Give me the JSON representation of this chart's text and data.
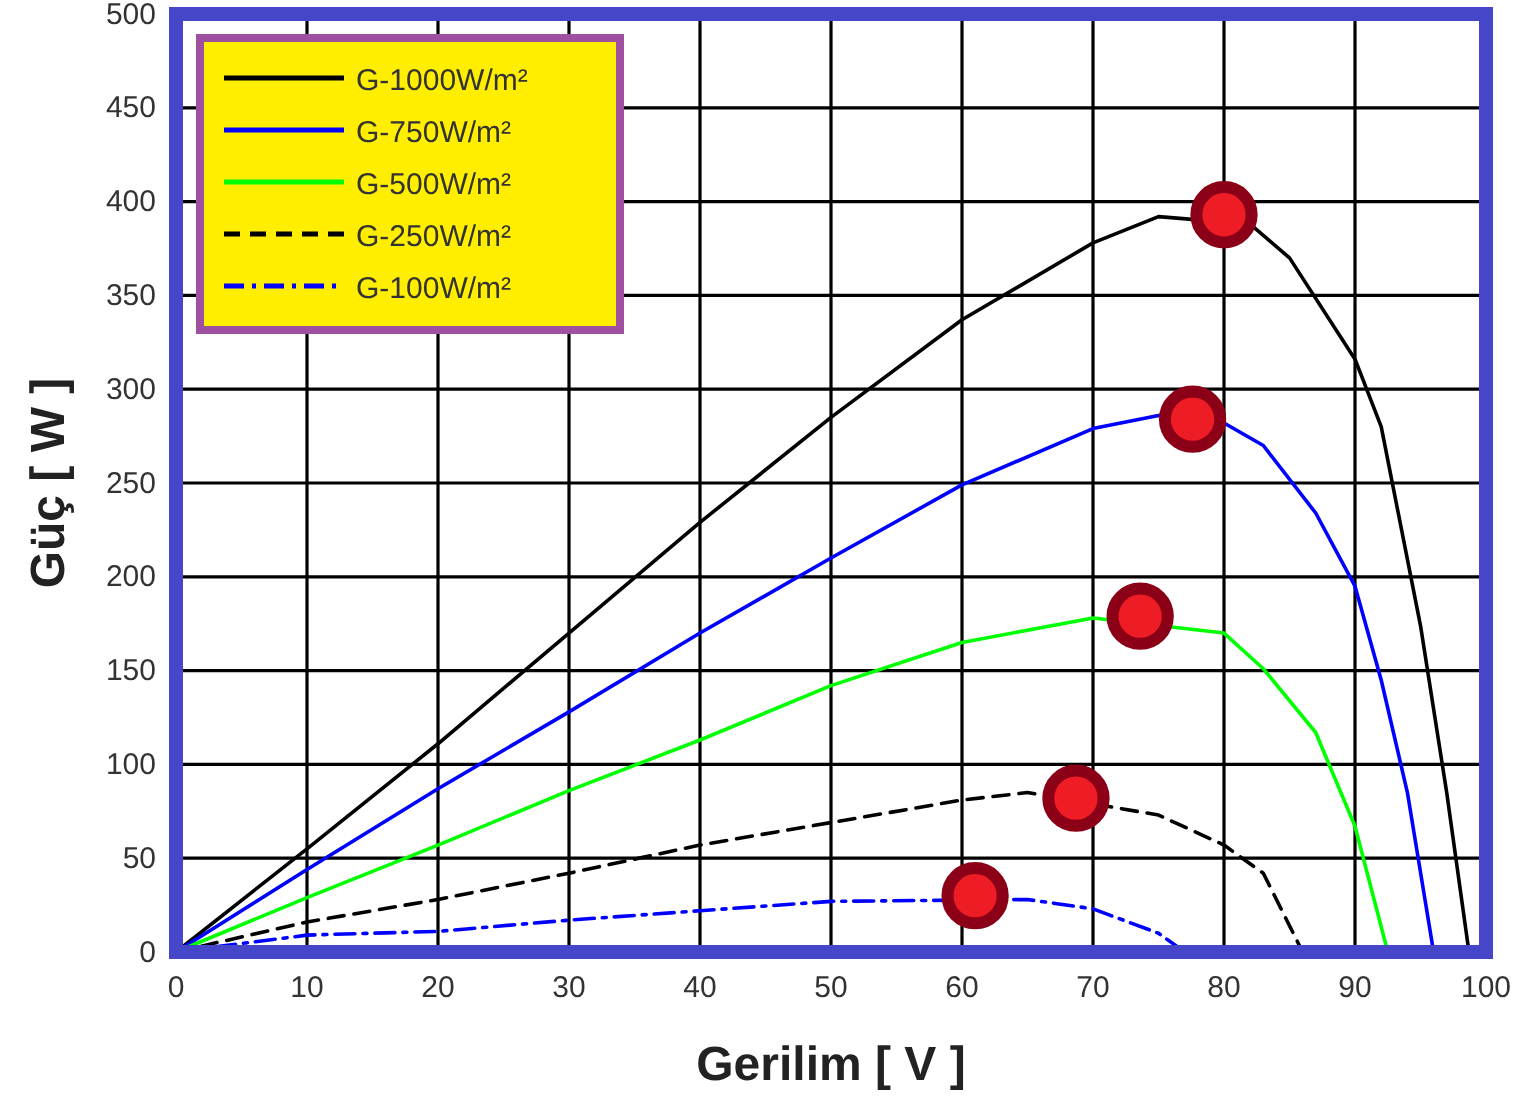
{
  "chart_data": {
    "type": "line",
    "xlabel": "Gerilim [ V ]",
    "ylabel": "Güç [ W ]",
    "xlim": [
      0,
      100
    ],
    "xticks": [
      0,
      10,
      20,
      30,
      40,
      50,
      60,
      70,
      80,
      90,
      100
    ],
    "ylim": [
      0,
      500
    ],
    "yticks": [
      0,
      50,
      100,
      150,
      200,
      250,
      300,
      350,
      400,
      450,
      500
    ],
    "grid": true,
    "legend": "top left",
    "series": [
      {
        "name": "G-1000W/m²",
        "color": "#000000",
        "line_style": "solid",
        "x": [
          0,
          10,
          20,
          30,
          40,
          50,
          60,
          70,
          75,
          82,
          85,
          90,
          92,
          95,
          97,
          98.7
        ],
        "values": [
          0,
          55,
          111,
          170,
          229,
          285,
          337,
          378,
          392,
          388,
          370,
          316,
          280,
          174,
          85,
          0
        ]
      },
      {
        "name": "G-750W/m²",
        "color": "#0000ff",
        "line_style": "solid",
        "x": [
          0,
          10,
          20,
          30,
          40,
          50,
          60,
          70,
          75,
          80,
          83,
          87,
          90,
          92,
          94,
          96
        ],
        "values": [
          0,
          44,
          87,
          128,
          170,
          210,
          249,
          279,
          286,
          282,
          270,
          234,
          195,
          145,
          85,
          0
        ]
      },
      {
        "name": "G-500W/m²",
        "color": "#00ff00",
        "line_style": "solid",
        "x": [
          0,
          10,
          20,
          30,
          40,
          50,
          60,
          70,
          80,
          83,
          87,
          90,
          92.5
        ],
        "values": [
          0,
          29,
          57,
          86,
          113,
          142,
          165,
          178,
          170,
          151,
          117,
          67,
          0
        ]
      },
      {
        "name": "G-250W/m²",
        "color": "#000000",
        "line_style": "dashed",
        "x": [
          0,
          10,
          20,
          30,
          40,
          50,
          60,
          65,
          75,
          80,
          83,
          86
        ],
        "values": [
          0,
          16,
          28,
          42,
          57,
          69,
          81,
          85,
          73,
          57,
          42,
          0
        ]
      },
      {
        "name": "G-100W/m²",
        "color": "#0000ff",
        "line_style": "dashdot",
        "x": [
          0,
          10,
          20,
          30,
          40,
          50,
          65,
          70,
          75,
          77
        ],
        "values": [
          0,
          9,
          11,
          17,
          22,
          27,
          28,
          23,
          10,
          0
        ]
      },
      {
        "type": "scatter",
        "color": "#ee1c25",
        "marker": "circle",
        "x": [
          80,
          77.6,
          73.6,
          68.7,
          61
        ],
        "values": [
          393,
          284,
          179,
          82,
          30
        ]
      }
    ]
  }
}
